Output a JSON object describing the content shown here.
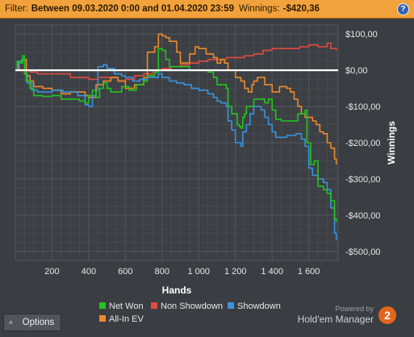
{
  "filter": {
    "label": "Filter:",
    "value": "Between 09.03.2020 0:00 and 01.04.2020 23:59",
    "winnings_label": "Winnings:",
    "winnings_value": "-$420,36",
    "help_icon": "question-circle-icon",
    "help_text": "?"
  },
  "options": {
    "label": "Options",
    "icon": "chevron-up-icon",
    "chevron": "˄"
  },
  "branding": {
    "powered_by": "Powered by",
    "product": "Hold'em Manager",
    "badge": "2"
  },
  "colors": {
    "net_won": "#22c51c",
    "non_showdown": "#e34a42",
    "showdown": "#3a93de",
    "all_in_ev": "#ef8a2a",
    "zero_line": "#ffffff",
    "header_bg": "#f2a23c",
    "plot_bg": "#3c4045"
  },
  "chart_data": {
    "type": "line",
    "title": "",
    "xlabel": "Hands",
    "ylabel": "Winnings",
    "xlim": [
      0,
      1760
    ],
    "ylim": [
      -525,
      125
    ],
    "x_ticks": [
      200,
      400,
      600,
      800,
      1000,
      1200,
      1400,
      1600
    ],
    "x_tick_labels": [
      "200",
      "400",
      "600",
      "800",
      "1 000",
      "1 200",
      "1 400",
      "1 600"
    ],
    "y_ticks": [
      100,
      0,
      -100,
      -200,
      -300,
      -400,
      -500
    ],
    "y_tick_labels": [
      "$100,00",
      "$0,00",
      "-$100,00",
      "-$200,00",
      "-$300,00",
      "-$400,00",
      "-$500,00"
    ],
    "grid": true,
    "legend_position": "bottom",
    "series": [
      {
        "name": "Net Won",
        "points": [
          [
            0,
            0
          ],
          [
            10,
            25
          ],
          [
            20,
            20
          ],
          [
            40,
            40
          ],
          [
            50,
            -10
          ],
          [
            60,
            -30
          ],
          [
            80,
            -50
          ],
          [
            100,
            -70
          ],
          [
            150,
            -72
          ],
          [
            200,
            -70
          ],
          [
            250,
            -80
          ],
          [
            300,
            -80
          ],
          [
            350,
            -85
          ],
          [
            380,
            -90
          ],
          [
            400,
            -70
          ],
          [
            420,
            -55
          ],
          [
            440,
            -75
          ],
          [
            460,
            -50
          ],
          [
            480,
            -35
          ],
          [
            500,
            -50
          ],
          [
            520,
            -60
          ],
          [
            560,
            -60
          ],
          [
            580,
            -45
          ],
          [
            600,
            -45
          ],
          [
            620,
            -55
          ],
          [
            660,
            -40
          ],
          [
            700,
            -30
          ],
          [
            720,
            -15
          ],
          [
            760,
            -5
          ],
          [
            780,
            60
          ],
          [
            800,
            55
          ],
          [
            820,
            30
          ],
          [
            840,
            10
          ],
          [
            900,
            10
          ],
          [
            950,
            0
          ],
          [
            1000,
            0
          ],
          [
            1050,
            -5
          ],
          [
            1080,
            -20
          ],
          [
            1100,
            -40
          ],
          [
            1120,
            -40
          ],
          [
            1150,
            -50
          ],
          [
            1160,
            -100
          ],
          [
            1180,
            -120
          ],
          [
            1200,
            -120
          ],
          [
            1210,
            -150
          ],
          [
            1220,
            -155
          ],
          [
            1230,
            -160
          ],
          [
            1240,
            -130
          ],
          [
            1250,
            -120
          ],
          [
            1260,
            -100
          ],
          [
            1300,
            -80
          ],
          [
            1360,
            -90
          ],
          [
            1380,
            -80
          ],
          [
            1400,
            -110
          ],
          [
            1420,
            -135
          ],
          [
            1450,
            -140
          ],
          [
            1500,
            -140
          ],
          [
            1540,
            -120
          ],
          [
            1580,
            -110
          ],
          [
            1590,
            -200
          ],
          [
            1610,
            -260
          ],
          [
            1630,
            -250
          ],
          [
            1650,
            -320
          ],
          [
            1680,
            -330
          ],
          [
            1700,
            -340
          ],
          [
            1720,
            -360
          ],
          [
            1740,
            -410
          ],
          [
            1750,
            -420
          ]
        ]
      },
      {
        "name": "Non Showdown",
        "points": [
          [
            0,
            0
          ],
          [
            20,
            2
          ],
          [
            40,
            0
          ],
          [
            80,
            -5
          ],
          [
            120,
            -10
          ],
          [
            200,
            -10
          ],
          [
            300,
            -20
          ],
          [
            400,
            -25
          ],
          [
            450,
            -20
          ],
          [
            500,
            -20
          ],
          [
            560,
            -30
          ],
          [
            600,
            -25
          ],
          [
            650,
            -15
          ],
          [
            700,
            -10
          ],
          [
            750,
            0
          ],
          [
            800,
            5
          ],
          [
            850,
            10
          ],
          [
            900,
            15
          ],
          [
            950,
            20
          ],
          [
            1000,
            25
          ],
          [
            1050,
            30
          ],
          [
            1100,
            30
          ],
          [
            1150,
            35
          ],
          [
            1200,
            35
          ],
          [
            1250,
            40
          ],
          [
            1300,
            45
          ],
          [
            1350,
            55
          ],
          [
            1400,
            60
          ],
          [
            1450,
            60
          ],
          [
            1500,
            60
          ],
          [
            1550,
            65
          ],
          [
            1600,
            70
          ],
          [
            1650,
            65
          ],
          [
            1700,
            75
          ],
          [
            1720,
            60
          ],
          [
            1750,
            55
          ]
        ]
      },
      {
        "name": "Showdown",
        "points": [
          [
            0,
            0
          ],
          [
            15,
            25
          ],
          [
            35,
            30
          ],
          [
            50,
            -10
          ],
          [
            65,
            -35
          ],
          [
            90,
            -55
          ],
          [
            120,
            -60
          ],
          [
            160,
            -60
          ],
          [
            200,
            -55
          ],
          [
            260,
            -60
          ],
          [
            300,
            -60
          ],
          [
            340,
            -70
          ],
          [
            380,
            -95
          ],
          [
            400,
            -100
          ],
          [
            420,
            -70
          ],
          [
            440,
            -55
          ],
          [
            450,
            10
          ],
          [
            480,
            15
          ],
          [
            500,
            5
          ],
          [
            540,
            -10
          ],
          [
            580,
            -15
          ],
          [
            600,
            -20
          ],
          [
            640,
            -30
          ],
          [
            680,
            -25
          ],
          [
            720,
            -20
          ],
          [
            780,
            -10
          ],
          [
            800,
            -20
          ],
          [
            840,
            -30
          ],
          [
            880,
            -35
          ],
          [
            920,
            -40
          ],
          [
            960,
            -50
          ],
          [
            1000,
            -55
          ],
          [
            1050,
            -65
          ],
          [
            1080,
            -75
          ],
          [
            1100,
            -85
          ],
          [
            1120,
            -90
          ],
          [
            1150,
            -100
          ],
          [
            1160,
            -140
          ],
          [
            1180,
            -165
          ],
          [
            1200,
            -200
          ],
          [
            1220,
            -200
          ],
          [
            1230,
            -210
          ],
          [
            1240,
            -170
          ],
          [
            1260,
            -150
          ],
          [
            1280,
            -120
          ],
          [
            1300,
            -100
          ],
          [
            1340,
            -110
          ],
          [
            1360,
            -130
          ],
          [
            1380,
            -150
          ],
          [
            1400,
            -170
          ],
          [
            1420,
            -185
          ],
          [
            1440,
            -185
          ],
          [
            1480,
            -180
          ],
          [
            1530,
            -175
          ],
          [
            1560,
            -190
          ],
          [
            1580,
            -210
          ],
          [
            1600,
            -270
          ],
          [
            1620,
            -290
          ],
          [
            1650,
            -300
          ],
          [
            1680,
            -310
          ],
          [
            1700,
            -330
          ],
          [
            1720,
            -380
          ],
          [
            1740,
            -450
          ],
          [
            1750,
            -470
          ]
        ]
      },
      {
        "name": "All-In EV",
        "points": [
          [
            0,
            0
          ],
          [
            20,
            25
          ],
          [
            40,
            30
          ],
          [
            60,
            -15
          ],
          [
            80,
            -30
          ],
          [
            100,
            -45
          ],
          [
            150,
            -50
          ],
          [
            200,
            -55
          ],
          [
            250,
            -65
          ],
          [
            300,
            -60
          ],
          [
            350,
            -60
          ],
          [
            380,
            -70
          ],
          [
            400,
            -75
          ],
          [
            440,
            -40
          ],
          [
            480,
            -30
          ],
          [
            520,
            -20
          ],
          [
            560,
            -30
          ],
          [
            600,
            -50
          ],
          [
            650,
            -40
          ],
          [
            700,
            -20
          ],
          [
            720,
            50
          ],
          [
            760,
            65
          ],
          [
            780,
            100
          ],
          [
            800,
            95
          ],
          [
            820,
            90
          ],
          [
            840,
            80
          ],
          [
            880,
            50
          ],
          [
            900,
            20
          ],
          [
            950,
            45
          ],
          [
            980,
            65
          ],
          [
            1000,
            60
          ],
          [
            1040,
            45
          ],
          [
            1080,
            35
          ],
          [
            1100,
            20
          ],
          [
            1120,
            30
          ],
          [
            1140,
            20
          ],
          [
            1160,
            0
          ],
          [
            1200,
            -20
          ],
          [
            1230,
            -30
          ],
          [
            1250,
            -50
          ],
          [
            1270,
            -60
          ],
          [
            1290,
            -40
          ],
          [
            1300,
            -30
          ],
          [
            1320,
            -20
          ],
          [
            1360,
            -40
          ],
          [
            1400,
            -60
          ],
          [
            1440,
            -45
          ],
          [
            1480,
            -50
          ],
          [
            1500,
            -60
          ],
          [
            1520,
            -80
          ],
          [
            1540,
            -100
          ],
          [
            1560,
            -120
          ],
          [
            1580,
            -130
          ],
          [
            1600,
            -130
          ],
          [
            1620,
            -140
          ],
          [
            1640,
            -150
          ],
          [
            1660,
            -170
          ],
          [
            1680,
            -175
          ],
          [
            1700,
            -200
          ],
          [
            1720,
            -215
          ],
          [
            1740,
            -245
          ],
          [
            1750,
            -260
          ]
        ]
      }
    ]
  }
}
